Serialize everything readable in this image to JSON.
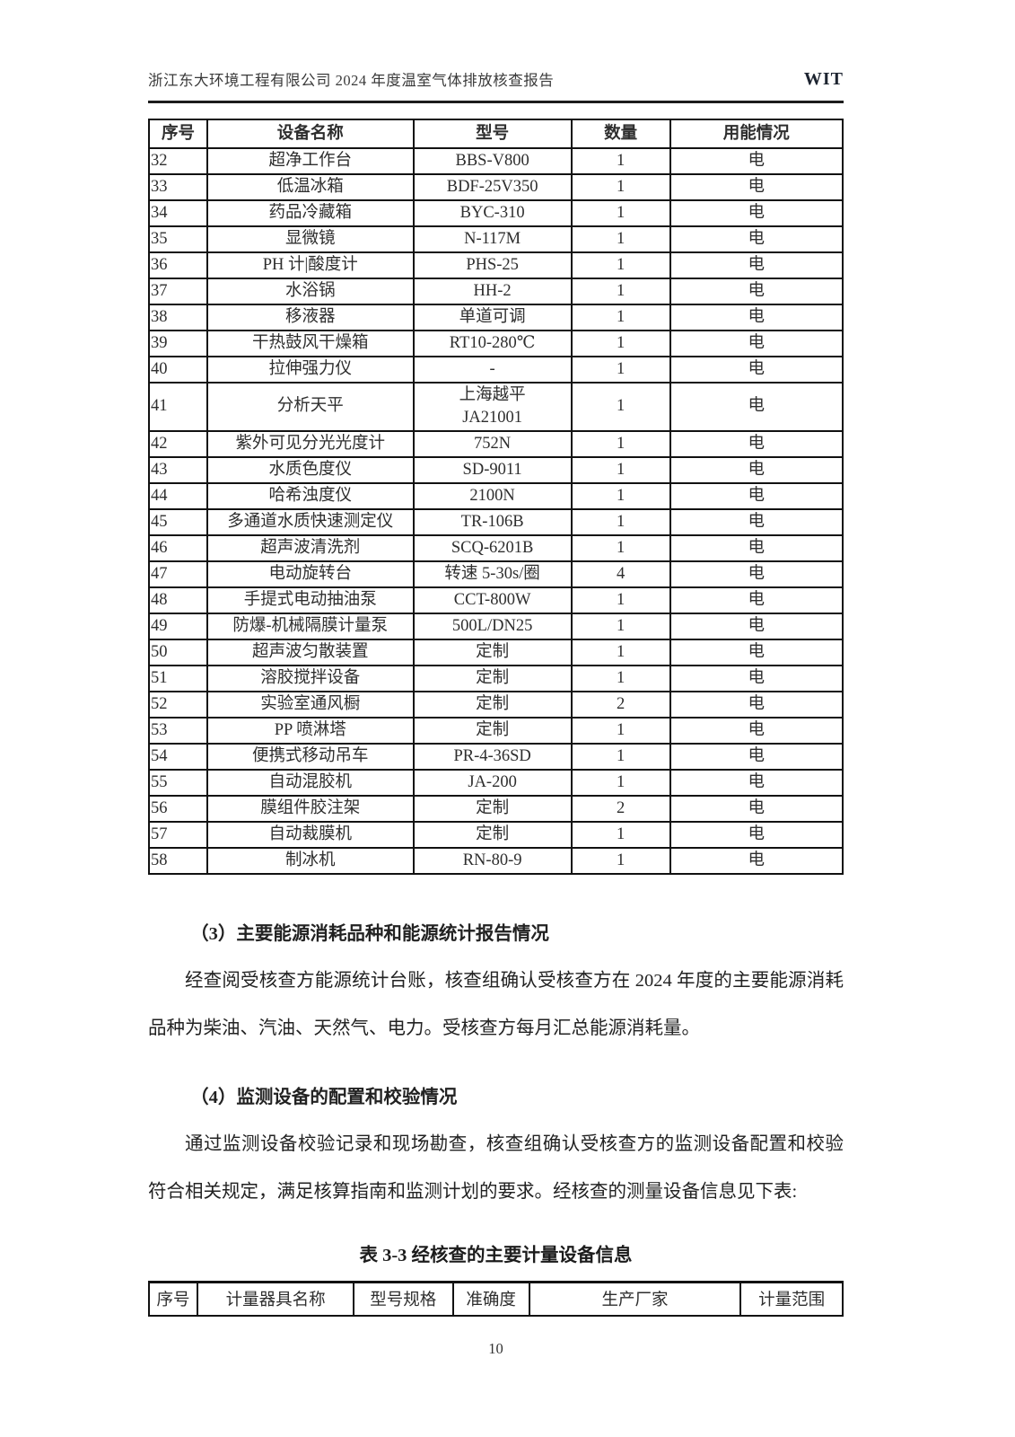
{
  "header": {
    "title": "浙江东大环境工程有限公司 2024 年度温室气体排放核查报告",
    "logo": "WIT"
  },
  "equipment_table": {
    "columns": [
      "序号",
      "设备名称",
      "型号",
      "数量",
      "用能情况"
    ],
    "rows": [
      [
        "32",
        "超净工作台",
        "BBS-V800",
        "1",
        "电"
      ],
      [
        "33",
        "低温冰箱",
        "BDF-25V350",
        "1",
        "电"
      ],
      [
        "34",
        "药品冷藏箱",
        "BYC-310",
        "1",
        "电"
      ],
      [
        "35",
        "显微镜",
        "N-117M",
        "1",
        "电"
      ],
      [
        "36",
        "PH 计|酸度计",
        "PHS-25",
        "1",
        "电"
      ],
      [
        "37",
        "水浴锅",
        "HH-2",
        "1",
        "电"
      ],
      [
        "38",
        "移液器",
        "单道可调",
        "1",
        "电"
      ],
      [
        "39",
        "干热鼓风干燥箱",
        "RT10-280℃",
        "1",
        "电"
      ],
      [
        "40",
        "拉伸强力仪",
        "-",
        "1",
        "电"
      ],
      [
        "41",
        "分析天平",
        "上海越平\nJA21001",
        "1",
        "电"
      ],
      [
        "42",
        "紫外可见分光光度计",
        "752N",
        "1",
        "电"
      ],
      [
        "43",
        "水质色度仪",
        "SD-9011",
        "1",
        "电"
      ],
      [
        "44",
        "哈希浊度仪",
        "2100N",
        "1",
        "电"
      ],
      [
        "45",
        "多通道水质快速测定仪",
        "TR-106B",
        "1",
        "电"
      ],
      [
        "46",
        "超声波清洗剂",
        "SCQ-6201B",
        "1",
        "电"
      ],
      [
        "47",
        "电动旋转台",
        "转速 5-30s/圈",
        "4",
        "电"
      ],
      [
        "48",
        "手提式电动抽油泵",
        "CCT-800W",
        "1",
        "电"
      ],
      [
        "49",
        "防爆-机械隔膜计量泵",
        "500L/DN25",
        "1",
        "电"
      ],
      [
        "50",
        "超声波匀散装置",
        "定制",
        "1",
        "电"
      ],
      [
        "51",
        "溶胶搅拌设备",
        "定制",
        "1",
        "电"
      ],
      [
        "52",
        "实验室通风橱",
        "定制",
        "2",
        "电"
      ],
      [
        "53",
        "PP 喷淋塔",
        "定制",
        "1",
        "电"
      ],
      [
        "54",
        "便携式移动吊车",
        "PR-4-36SD",
        "1",
        "电"
      ],
      [
        "55",
        "自动混胶机",
        "JA-200",
        "1",
        "电"
      ],
      [
        "56",
        "膜组件胶注架",
        "定制",
        "2",
        "电"
      ],
      [
        "57",
        "自动裁膜机",
        "定制",
        "1",
        "电"
      ],
      [
        "58",
        "制冰机",
        "RN-80-9",
        "1",
        "电"
      ]
    ]
  },
  "sections": {
    "s3": {
      "heading": "（3）主要能源消耗品种和能源统计报告情况",
      "paragraph": "经查阅受核查方能源统计台账，核查组确认受核查方在 2024 年度的主要能源消耗品种为柴油、汽油、天然气、电力。受核查方每月汇总能源消耗量。"
    },
    "s4": {
      "heading": "（4）监测设备的配置和校验情况",
      "paragraph": "通过监测设备校验记录和现场勘查，核查组确认受核查方的监测设备配置和校验符合相关规定，满足核算指南和监测计划的要求。经核查的测量设备信息见下表:"
    }
  },
  "measure_table": {
    "caption": "表 3-3 经核查的主要计量设备信息",
    "columns": [
      "序号",
      "计量器具名称",
      "型号规格",
      "准确度",
      "生产厂家",
      "计量范围"
    ]
  },
  "page_number": "10"
}
